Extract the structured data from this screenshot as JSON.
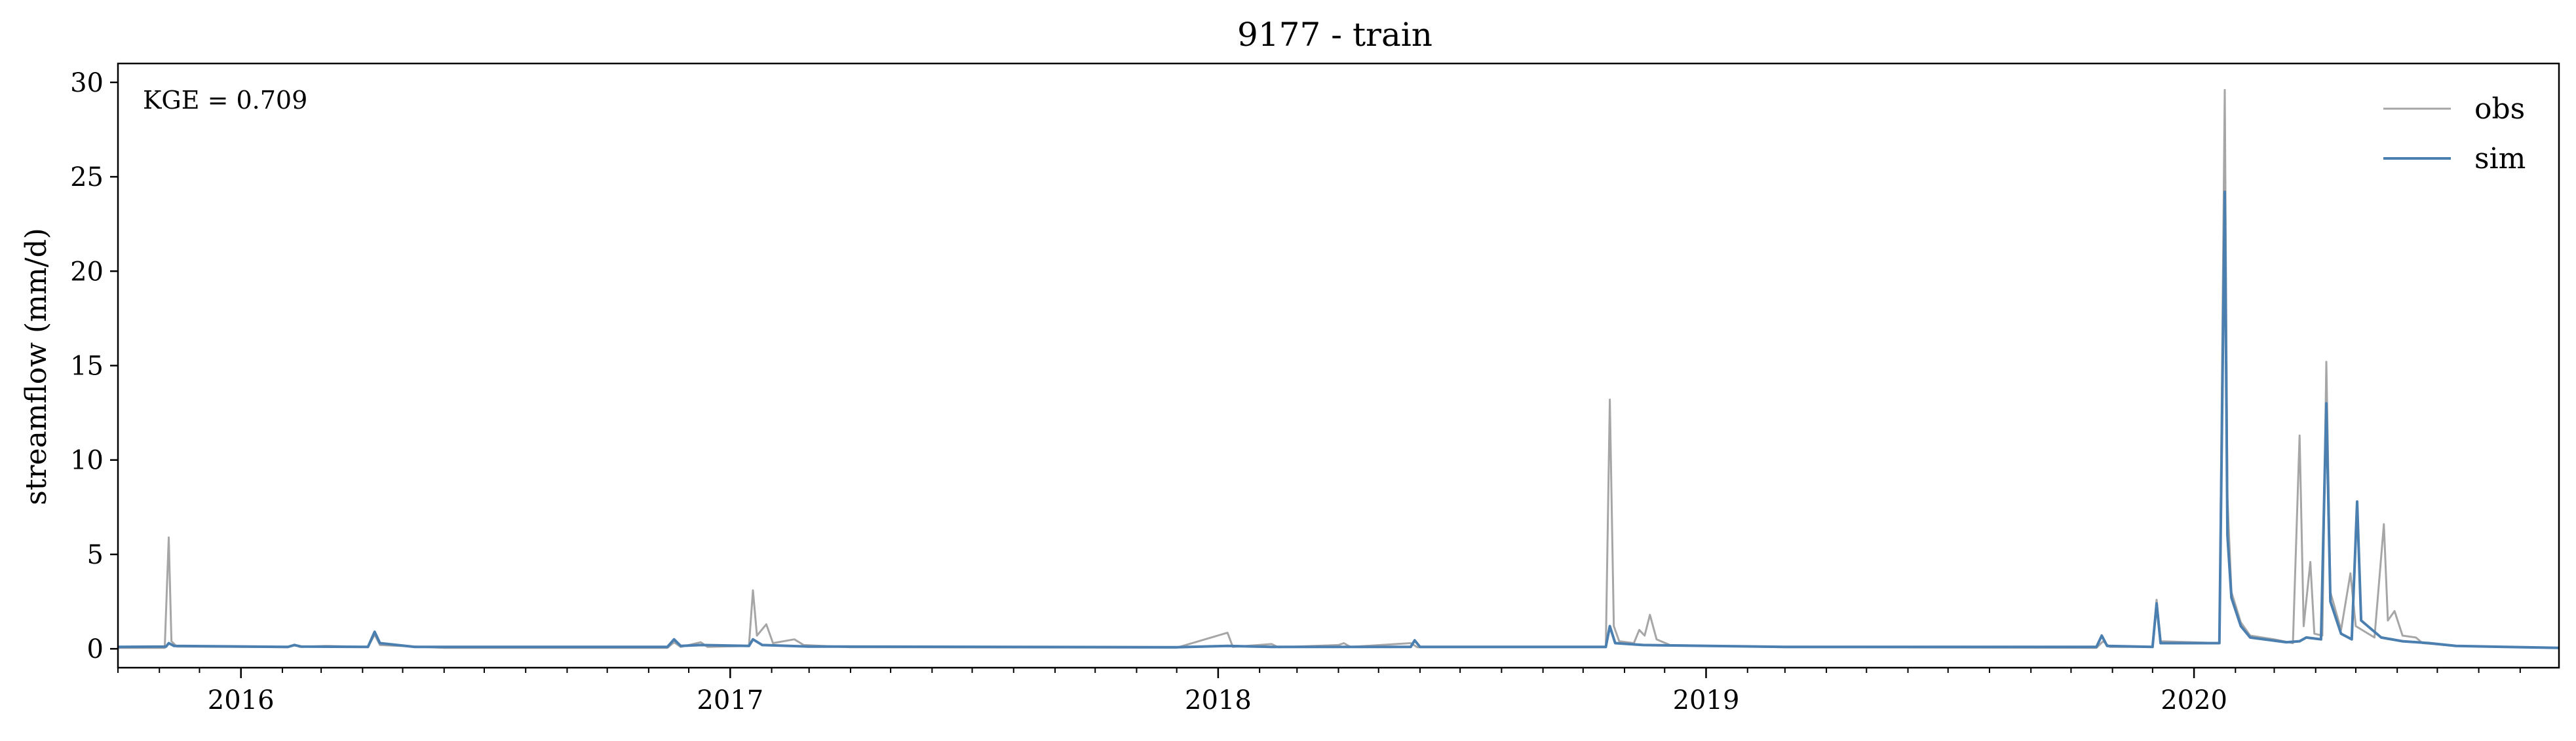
{
  "chart_data": {
    "type": "line",
    "title": "9177 - train",
    "xlabel": "",
    "ylabel": "streamflow (mm/d)",
    "annotation": "KGE = 0.709",
    "x_range": [
      "2015-10-01",
      "2020-09-30"
    ],
    "ylim": [
      -1,
      31
    ],
    "yticks": [
      0,
      5,
      10,
      15,
      20,
      25,
      30
    ],
    "xticks": [
      "2016-01-01",
      "2017-01-01",
      "2018-01-01",
      "2019-01-01",
      "2020-01-01"
    ],
    "xtick_labels": [
      "2016",
      "2017",
      "2018",
      "2019",
      "2020"
    ],
    "grid": false,
    "legend": {
      "position": "top-right",
      "entries": [
        "obs",
        "sim"
      ]
    },
    "colors": {
      "obs": "#a6a6a6",
      "sim": "#4a7fb0"
    },
    "series": [
      {
        "name": "obs",
        "points": [
          [
            "2015-10-01",
            0.05
          ],
          [
            "2015-11-05",
            0.05
          ],
          [
            "2015-11-08",
            5.9
          ],
          [
            "2015-11-10",
            0.4
          ],
          [
            "2015-11-14",
            0.12
          ],
          [
            "2016-02-05",
            0.08
          ],
          [
            "2016-02-10",
            0.22
          ],
          [
            "2016-02-14",
            0.1
          ],
          [
            "2016-03-05",
            0.15
          ],
          [
            "2016-04-05",
            0.1
          ],
          [
            "2016-04-10",
            0.75
          ],
          [
            "2016-04-14",
            0.2
          ],
          [
            "2016-06-01",
            0.05
          ],
          [
            "2016-11-15",
            0.05
          ],
          [
            "2016-11-20",
            0.35
          ],
          [
            "2016-11-25",
            0.1
          ],
          [
            "2016-12-10",
            0.35
          ],
          [
            "2016-12-15",
            0.1
          ],
          [
            "2017-01-15",
            0.15
          ],
          [
            "2017-01-18",
            3.1
          ],
          [
            "2017-01-21",
            0.7
          ],
          [
            "2017-01-28",
            1.3
          ],
          [
            "2017-02-02",
            0.3
          ],
          [
            "2017-02-18",
            0.5
          ],
          [
            "2017-02-25",
            0.2
          ],
          [
            "2017-04-01",
            0.08
          ],
          [
            "2017-12-01",
            0.06
          ],
          [
            "2018-01-08",
            0.85
          ],
          [
            "2018-01-12",
            0.1
          ],
          [
            "2018-02-10",
            0.25
          ],
          [
            "2018-02-15",
            0.08
          ],
          [
            "2018-04-01",
            0.2
          ],
          [
            "2018-04-05",
            0.3
          ],
          [
            "2018-04-10",
            0.1
          ],
          [
            "2018-05-25",
            0.3
          ],
          [
            "2018-05-30",
            0.08
          ],
          [
            "2018-10-18",
            0.08
          ],
          [
            "2018-10-21",
            13.2
          ],
          [
            "2018-10-24",
            1.2
          ],
          [
            "2018-10-28",
            0.4
          ],
          [
            "2018-11-08",
            0.3
          ],
          [
            "2018-11-12",
            1.0
          ],
          [
            "2018-11-16",
            0.7
          ],
          [
            "2018-11-20",
            1.8
          ],
          [
            "2018-11-25",
            0.5
          ],
          [
            "2018-12-05",
            0.2
          ],
          [
            "2019-03-01",
            0.08
          ],
          [
            "2019-10-20",
            0.05
          ],
          [
            "2019-10-25",
            0.4
          ],
          [
            "2019-10-30",
            0.1
          ],
          [
            "2019-12-01",
            0.1
          ],
          [
            "2019-12-04",
            2.6
          ],
          [
            "2019-12-07",
            0.4
          ],
          [
            "2020-01-20",
            0.3
          ],
          [
            "2020-01-24",
            29.6
          ],
          [
            "2020-01-26",
            8.0
          ],
          [
            "2020-01-29",
            3.0
          ],
          [
            "2020-02-05",
            1.4
          ],
          [
            "2020-02-12",
            0.7
          ],
          [
            "2020-03-01",
            0.5
          ],
          [
            "2020-03-15",
            0.3
          ],
          [
            "2020-03-20",
            11.3
          ],
          [
            "2020-03-23",
            1.2
          ],
          [
            "2020-03-28",
            4.6
          ],
          [
            "2020-03-31",
            0.8
          ],
          [
            "2020-04-06",
            0.7
          ],
          [
            "2020-04-09",
            15.2
          ],
          [
            "2020-04-12",
            3.0
          ],
          [
            "2020-04-20",
            1.0
          ],
          [
            "2020-04-27",
            4.0
          ],
          [
            "2020-05-01",
            1.2
          ],
          [
            "2020-05-15",
            0.6
          ],
          [
            "2020-05-22",
            6.6
          ],
          [
            "2020-05-25",
            1.5
          ],
          [
            "2020-05-30",
            2.0
          ],
          [
            "2020-06-05",
            0.7
          ],
          [
            "2020-06-15",
            0.6
          ],
          [
            "2020-06-20",
            0.3
          ],
          [
            "2020-07-15",
            0.15
          ],
          [
            "2020-09-30",
            0.05
          ]
        ]
      },
      {
        "name": "sim",
        "points": [
          [
            "2015-10-01",
            0.1
          ],
          [
            "2015-11-06",
            0.12
          ],
          [
            "2015-11-08",
            0.3
          ],
          [
            "2015-11-12",
            0.15
          ],
          [
            "2016-02-05",
            0.1
          ],
          [
            "2016-02-10",
            0.2
          ],
          [
            "2016-02-15",
            0.12
          ],
          [
            "2016-04-05",
            0.1
          ],
          [
            "2016-04-10",
            0.9
          ],
          [
            "2016-04-14",
            0.3
          ],
          [
            "2016-05-10",
            0.1
          ],
          [
            "2016-11-15",
            0.1
          ],
          [
            "2016-11-20",
            0.5
          ],
          [
            "2016-11-25",
            0.15
          ],
          [
            "2016-12-10",
            0.2
          ],
          [
            "2017-01-15",
            0.15
          ],
          [
            "2017-01-18",
            0.5
          ],
          [
            "2017-01-25",
            0.2
          ],
          [
            "2017-03-01",
            0.12
          ],
          [
            "2017-12-01",
            0.08
          ],
          [
            "2018-01-08",
            0.15
          ],
          [
            "2018-02-10",
            0.1
          ],
          [
            "2018-05-25",
            0.1
          ],
          [
            "2018-05-28",
            0.45
          ],
          [
            "2018-06-01",
            0.1
          ],
          [
            "2018-10-18",
            0.1
          ],
          [
            "2018-10-21",
            1.2
          ],
          [
            "2018-10-25",
            0.3
          ],
          [
            "2018-11-15",
            0.2
          ],
          [
            "2019-03-01",
            0.1
          ],
          [
            "2019-10-20",
            0.1
          ],
          [
            "2019-10-24",
            0.7
          ],
          [
            "2019-10-28",
            0.15
          ],
          [
            "2019-12-01",
            0.1
          ],
          [
            "2019-12-04",
            2.4
          ],
          [
            "2019-12-07",
            0.3
          ],
          [
            "2020-01-20",
            0.3
          ],
          [
            "2020-01-24",
            24.2
          ],
          [
            "2020-01-26",
            6.0
          ],
          [
            "2020-01-29",
            2.7
          ],
          [
            "2020-02-05",
            1.2
          ],
          [
            "2020-02-12",
            0.6
          ],
          [
            "2020-03-10",
            0.35
          ],
          [
            "2020-03-20",
            0.4
          ],
          [
            "2020-03-25",
            0.6
          ],
          [
            "2020-04-05",
            0.5
          ],
          [
            "2020-04-09",
            13.0
          ],
          [
            "2020-04-12",
            2.5
          ],
          [
            "2020-04-20",
            0.8
          ],
          [
            "2020-04-28",
            0.5
          ],
          [
            "2020-05-02",
            7.8
          ],
          [
            "2020-05-05",
            1.5
          ],
          [
            "2020-05-20",
            0.6
          ],
          [
            "2020-06-05",
            0.4
          ],
          [
            "2020-06-25",
            0.3
          ],
          [
            "2020-07-15",
            0.15
          ],
          [
            "2020-09-30",
            0.05
          ]
        ]
      }
    ]
  }
}
